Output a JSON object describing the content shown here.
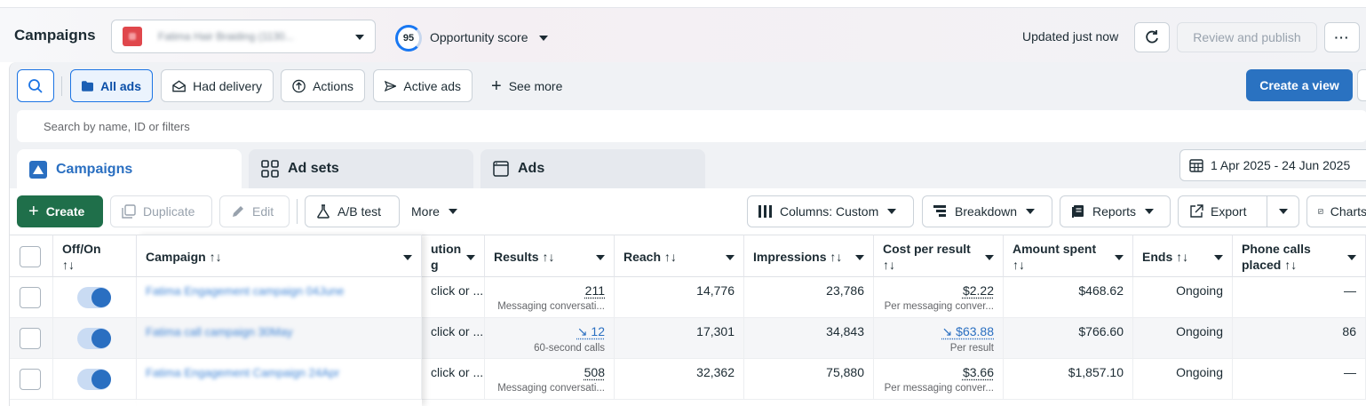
{
  "header": {
    "title": "Campaigns",
    "account_name": "Fatima Hair Braiding (1130...",
    "opportunity_score": "95",
    "opportunity_label": "Opportunity score",
    "updated_text": "Updated just now",
    "review_publish_label": "Review and publish",
    "more_label": "···"
  },
  "filters": {
    "buttons": [
      "All ads",
      "Had delivery",
      "Actions",
      "Active ads"
    ],
    "see_more": "See more",
    "create_view": "Create a view",
    "search_placeholder": "Search by name, ID or filters"
  },
  "tabs": [
    "Campaigns",
    "Ad sets",
    "Ads"
  ],
  "date_range": "1 Apr 2025 - 24 Jun 2025",
  "toolbar": {
    "create": "Create",
    "duplicate": "Duplicate",
    "edit": "Edit",
    "ab_test": "A/B test",
    "more": "More",
    "columns": "Columns: Custom",
    "breakdown": "Breakdown",
    "reports": "Reports",
    "export": "Export",
    "charts": "Charts"
  },
  "table": {
    "headers": {
      "offon_l1": "Off/On",
      "offon_l2": "↑↓",
      "campaign": "Campaign ↑↓",
      "attribution_l1": "ution",
      "attribution_l2": "g",
      "results": "Results ↑↓",
      "reach": "Reach ↑↓",
      "impressions": "Impressions ↑↓",
      "cpr_l1": "Cost per result",
      "cpr_l2": "↑↓",
      "amount_l1": "Amount spent",
      "amount_l2": "↑↓",
      "ends": "Ends ↑↓",
      "phone_l1": "Phone calls",
      "phone_l2": "placed ↑↓"
    },
    "rows": [
      {
        "name": "Fatima Engagement campaign 04June",
        "attribution": "click or ...",
        "results": "211",
        "results_sub": "Messaging conversati...",
        "reach": "14,776",
        "impressions": "23,786",
        "cpr": "$2.22",
        "cpr_sub": "Per messaging conver...",
        "amount": "$468.62",
        "ends": "Ongoing",
        "phone": "—"
      },
      {
        "name": "Fatima call campaign 30May",
        "attribution": "click or ...",
        "results": "↘ 12",
        "results_sub": "60-second calls",
        "reach": "17,301",
        "impressions": "34,843",
        "cpr": "↘ $63.88",
        "cpr_sub": "Per result",
        "amount": "$766.60",
        "ends": "Ongoing",
        "phone": "86"
      },
      {
        "name": "Fatima Engagement Campaign 24Apr",
        "attribution": "click or ...",
        "results": "508",
        "results_sub": "Messaging conversati...",
        "reach": "32,362",
        "impressions": "75,880",
        "cpr": "$3.66",
        "cpr_sub": "Per messaging conver...",
        "amount": "$1,857.10",
        "ends": "Ongoing",
        "phone": "—"
      }
    ]
  },
  "colors": {
    "accent_blue": "#2a72c1",
    "create_green": "#1f6f4a"
  }
}
